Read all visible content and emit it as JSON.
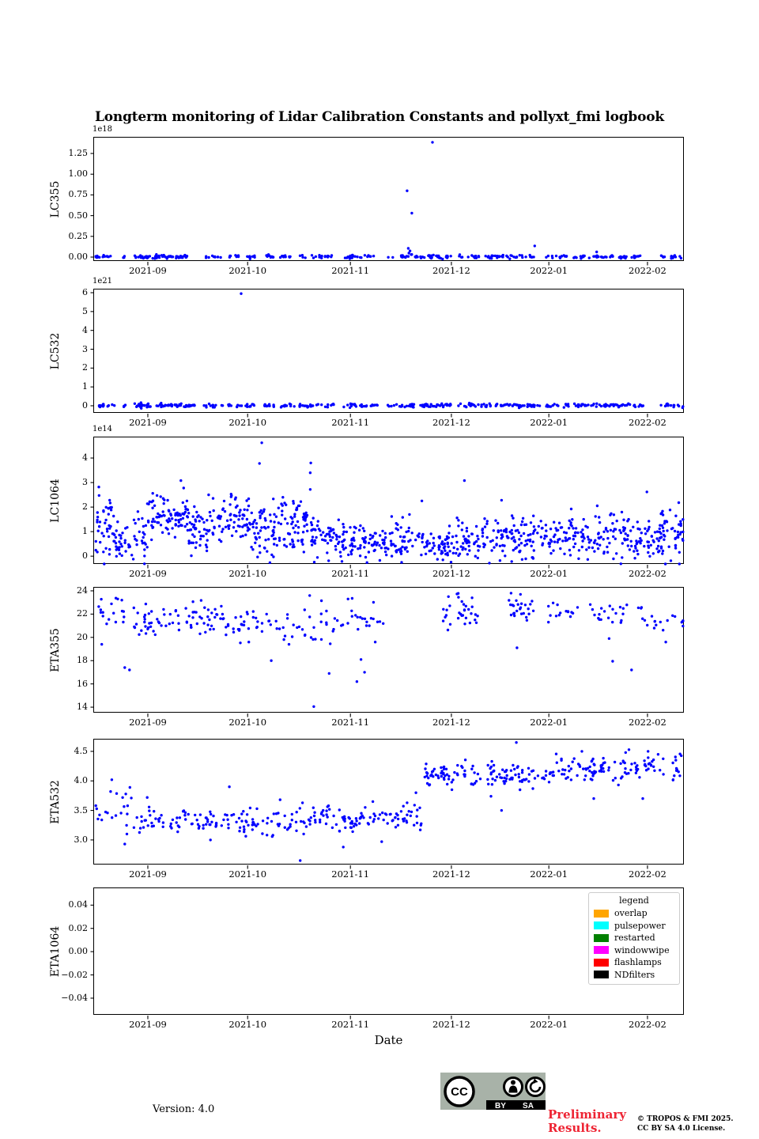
{
  "title": "Longterm monitoring of Lidar Calibration Constants and pollyxt_fmi logbook",
  "figure": {
    "background": "#ffffff",
    "point_color": "#0000ff",
    "axis_color": "#000000"
  },
  "x_axis": {
    "label": "Date",
    "ticks": [
      {
        "f": 0.091,
        "label": "2021-09"
      },
      {
        "f": 0.26,
        "label": "2021-10"
      },
      {
        "f": 0.434,
        "label": "2021-11"
      },
      {
        "f": 0.605,
        "label": "2021-12"
      },
      {
        "f": 0.77,
        "label": "2022-01"
      },
      {
        "f": 0.937,
        "label": "2022-02"
      }
    ]
  },
  "chart_data": [
    {
      "type": "scatter",
      "ylabel": "LC355",
      "offset_text": "1e18",
      "ylim": [
        -0.057,
        1.441
      ],
      "yticks": [
        {
          "v": 0.0,
          "label": "0.00"
        },
        {
          "v": 0.25,
          "label": "0.25"
        },
        {
          "v": 0.5,
          "label": "0.50"
        },
        {
          "v": 0.75,
          "label": "0.75"
        },
        {
          "v": 1.0,
          "label": "1.00"
        },
        {
          "v": 1.25,
          "label": "1.25"
        }
      ],
      "clusters": [
        {
          "x0": 0.0,
          "x1": 0.035,
          "n": 14,
          "y": 0.004,
          "sd": 0.01
        },
        {
          "x0": 0.048,
          "x1": 0.052,
          "n": 3,
          "y": 0.004,
          "sd": 0.008
        },
        {
          "x0": 0.068,
          "x1": 0.165,
          "n": 60,
          "y": 0.004,
          "sd": 0.01
        },
        {
          "x0": 0.188,
          "x1": 0.215,
          "n": 10,
          "y": 0.004,
          "sd": 0.01
        },
        {
          "x0": 0.228,
          "x1": 0.248,
          "n": 8,
          "y": 0.004,
          "sd": 0.01
        },
        {
          "x0": 0.258,
          "x1": 0.272,
          "n": 8,
          "y": 0.004,
          "sd": 0.01
        },
        {
          "x0": 0.285,
          "x1": 0.305,
          "n": 10,
          "y": 0.004,
          "sd": 0.01
        },
        {
          "x0": 0.315,
          "x1": 0.338,
          "n": 10,
          "y": 0.004,
          "sd": 0.01
        },
        {
          "x0": 0.348,
          "x1": 0.405,
          "n": 20,
          "y": 0.004,
          "sd": 0.01
        },
        {
          "x0": 0.425,
          "x1": 0.478,
          "n": 20,
          "y": 0.004,
          "sd": 0.01
        },
        {
          "x0": 0.498,
          "x1": 0.548,
          "n": 16,
          "y": 0.004,
          "sd": 0.01
        },
        {
          "x0": 0.552,
          "x1": 0.605,
          "n": 26,
          "y": 0.004,
          "sd": 0.012
        },
        {
          "x0": 0.618,
          "x1": 0.655,
          "n": 14,
          "y": 0.004,
          "sd": 0.01
        },
        {
          "x0": 0.658,
          "x1": 0.752,
          "n": 38,
          "y": 0.004,
          "sd": 0.01
        },
        {
          "x0": 0.765,
          "x1": 0.802,
          "n": 14,
          "y": 0.004,
          "sd": 0.01
        },
        {
          "x0": 0.812,
          "x1": 0.902,
          "n": 40,
          "y": 0.004,
          "sd": 0.01
        },
        {
          "x0": 0.908,
          "x1": 0.928,
          "n": 8,
          "y": 0.004,
          "sd": 0.01
        },
        {
          "x0": 0.958,
          "x1": 1.0,
          "n": 14,
          "y": 0.004,
          "sd": 0.01
        }
      ],
      "outliers": [
        [
          0.53,
          0.8
        ],
        [
          0.538,
          0.53
        ],
        [
          0.532,
          0.105
        ],
        [
          0.535,
          0.075
        ],
        [
          0.533,
          0.048
        ],
        [
          0.537,
          0.03
        ],
        [
          0.573,
          1.385
        ],
        [
          0.746,
          0.135
        ],
        [
          0.851,
          0.062
        ]
      ]
    },
    {
      "type": "scatter",
      "ylabel": "LC532",
      "offset_text": "1e21",
      "ylim": [
        -0.42,
        6.17
      ],
      "yticks": [
        {
          "v": 0,
          "label": "0"
        },
        {
          "v": 1,
          "label": "1"
        },
        {
          "v": 2,
          "label": "2"
        },
        {
          "v": 3,
          "label": "3"
        },
        {
          "v": 4,
          "label": "4"
        },
        {
          "v": 5,
          "label": "5"
        },
        {
          "v": 6,
          "label": "6"
        }
      ],
      "clusters": [
        {
          "x0": 0.0,
          "x1": 0.038,
          "n": 16,
          "y": 0.015,
          "sd": 0.05
        },
        {
          "x0": 0.05,
          "x1": 0.055,
          "n": 4,
          "y": 0.015,
          "sd": 0.04
        },
        {
          "x0": 0.066,
          "x1": 0.17,
          "n": 70,
          "y": 0.015,
          "sd": 0.05
        },
        {
          "x0": 0.186,
          "x1": 0.218,
          "n": 12,
          "y": 0.015,
          "sd": 0.05
        },
        {
          "x0": 0.226,
          "x1": 0.25,
          "n": 10,
          "y": 0.015,
          "sd": 0.05
        },
        {
          "x0": 0.256,
          "x1": 0.275,
          "n": 10,
          "y": 0.015,
          "sd": 0.05
        },
        {
          "x0": 0.284,
          "x1": 0.308,
          "n": 12,
          "y": 0.015,
          "sd": 0.05
        },
        {
          "x0": 0.314,
          "x1": 0.34,
          "n": 12,
          "y": 0.015,
          "sd": 0.05
        },
        {
          "x0": 0.346,
          "x1": 0.408,
          "n": 24,
          "y": 0.015,
          "sd": 0.05
        },
        {
          "x0": 0.422,
          "x1": 0.48,
          "n": 24,
          "y": 0.015,
          "sd": 0.05
        },
        {
          "x0": 0.496,
          "x1": 0.55,
          "n": 20,
          "y": 0.015,
          "sd": 0.05
        },
        {
          "x0": 0.552,
          "x1": 0.608,
          "n": 30,
          "y": 0.015,
          "sd": 0.05
        },
        {
          "x0": 0.615,
          "x1": 0.658,
          "n": 16,
          "y": 0.015,
          "sd": 0.05
        },
        {
          "x0": 0.658,
          "x1": 0.755,
          "n": 46,
          "y": 0.015,
          "sd": 0.05
        },
        {
          "x0": 0.762,
          "x1": 0.805,
          "n": 16,
          "y": 0.015,
          "sd": 0.05
        },
        {
          "x0": 0.81,
          "x1": 0.905,
          "n": 46,
          "y": 0.015,
          "sd": 0.05
        },
        {
          "x0": 0.906,
          "x1": 0.93,
          "n": 10,
          "y": 0.015,
          "sd": 0.05
        },
        {
          "x0": 0.955,
          "x1": 1.0,
          "n": 16,
          "y": 0.015,
          "sd": 0.05
        }
      ],
      "outliers": [
        [
          0.249,
          5.95
        ]
      ]
    },
    {
      "type": "scatter",
      "ylabel": "LC1064",
      "offset_text": "1e14",
      "ylim": [
        -0.35,
        4.84
      ],
      "yticks": [
        {
          "v": 0,
          "label": "0"
        },
        {
          "v": 1,
          "label": "1"
        },
        {
          "v": 2,
          "label": "2"
        },
        {
          "v": 3,
          "label": "3"
        },
        {
          "v": 4,
          "label": "4"
        }
      ],
      "clusters": [
        {
          "x0": 0.0,
          "x1": 0.03,
          "n": 38,
          "y": 1.15,
          "sd": 0.65
        },
        {
          "x0": 0.03,
          "x1": 0.09,
          "n": 60,
          "y": 0.75,
          "sd": 0.4
        },
        {
          "x0": 0.09,
          "x1": 0.16,
          "n": 85,
          "y": 1.7,
          "sd": 0.4
        },
        {
          "x0": 0.16,
          "x1": 0.2,
          "n": 50,
          "y": 1.1,
          "sd": 0.45
        },
        {
          "x0": 0.2,
          "x1": 0.262,
          "n": 70,
          "y": 1.5,
          "sd": 0.5
        },
        {
          "x0": 0.262,
          "x1": 0.31,
          "n": 60,
          "y": 1.05,
          "sd": 0.55
        },
        {
          "x0": 0.31,
          "x1": 0.368,
          "n": 70,
          "y": 1.25,
          "sd": 0.5
        },
        {
          "x0": 0.368,
          "x1": 0.43,
          "n": 70,
          "y": 0.8,
          "sd": 0.42
        },
        {
          "x0": 0.43,
          "x1": 0.5,
          "n": 70,
          "y": 0.55,
          "sd": 0.33
        },
        {
          "x0": 0.5,
          "x1": 0.56,
          "n": 55,
          "y": 0.75,
          "sd": 0.4
        },
        {
          "x0": 0.56,
          "x1": 0.6,
          "n": 45,
          "y": 0.42,
          "sd": 0.28
        },
        {
          "x0": 0.6,
          "x1": 0.66,
          "n": 60,
          "y": 0.6,
          "sd": 0.38
        },
        {
          "x0": 0.66,
          "x1": 0.72,
          "n": 60,
          "y": 0.8,
          "sd": 0.42
        },
        {
          "x0": 0.72,
          "x1": 0.78,
          "n": 60,
          "y": 0.8,
          "sd": 0.42
        },
        {
          "x0": 0.78,
          "x1": 0.845,
          "n": 60,
          "y": 0.9,
          "sd": 0.42
        },
        {
          "x0": 0.845,
          "x1": 0.905,
          "n": 60,
          "y": 0.8,
          "sd": 0.45
        },
        {
          "x0": 0.905,
          "x1": 0.96,
          "n": 55,
          "y": 0.7,
          "sd": 0.42
        },
        {
          "x0": 0.96,
          "x1": 1.0,
          "n": 50,
          "y": 0.85,
          "sd": 0.5
        }
      ],
      "outliers": [
        [
          0.284,
          4.62
        ],
        [
          0.28,
          3.78
        ],
        [
          0.367,
          3.8
        ],
        [
          0.366,
          3.4
        ],
        [
          0.366,
          2.72
        ],
        [
          0.008,
          2.82
        ],
        [
          0.147,
          3.08
        ],
        [
          0.194,
          2.5
        ],
        [
          0.627,
          3.08
        ],
        [
          0.555,
          2.25
        ],
        [
          0.69,
          2.28
        ],
        [
          0.936,
          2.62
        ],
        [
          0.99,
          2.18
        ],
        [
          0.852,
          2.05
        ],
        [
          0.117,
          2.35
        ],
        [
          0.232,
          2.42
        ]
      ]
    },
    {
      "type": "scatter",
      "ylabel": "ETA355",
      "offset_text": null,
      "ylim": [
        13.46,
        24.27
      ],
      "yticks": [
        {
          "v": 14,
          "label": "14"
        },
        {
          "v": 16,
          "label": "16"
        },
        {
          "v": 18,
          "label": "18"
        },
        {
          "v": 20,
          "label": "20"
        },
        {
          "v": 22,
          "label": "22"
        },
        {
          "v": 24,
          "label": "24"
        }
      ],
      "clusters": [
        {
          "x0": 0.0,
          "x1": 0.03,
          "n": 9,
          "y": 21.9,
          "sd": 0.8
        },
        {
          "x0": 0.03,
          "x1": 0.07,
          "n": 10,
          "y": 22.1,
          "sd": 0.6
        },
        {
          "x0": 0.07,
          "x1": 0.22,
          "n": 72,
          "y": 21.5,
          "sd": 0.65
        },
        {
          "x0": 0.22,
          "x1": 0.31,
          "n": 34,
          "y": 21.1,
          "sd": 0.75
        },
        {
          "x0": 0.31,
          "x1": 0.4,
          "n": 26,
          "y": 21.0,
          "sd": 0.8
        },
        {
          "x0": 0.4,
          "x1": 0.49,
          "n": 24,
          "y": 21.5,
          "sd": 0.55
        },
        {
          "x0": 0.578,
          "x1": 0.65,
          "n": 30,
          "y": 22.3,
          "sd": 0.7
        },
        {
          "x0": 0.7,
          "x1": 0.748,
          "n": 24,
          "y": 22.5,
          "sd": 0.6
        },
        {
          "x0": 0.764,
          "x1": 0.822,
          "n": 15,
          "y": 22.1,
          "sd": 0.4
        },
        {
          "x0": 0.838,
          "x1": 0.93,
          "n": 24,
          "y": 22.1,
          "sd": 0.65
        },
        {
          "x0": 0.93,
          "x1": 1.0,
          "n": 16,
          "y": 21.3,
          "sd": 0.45
        }
      ],
      "outliers": [
        [
          0.013,
          19.4
        ],
        [
          0.04,
          23.3
        ],
        [
          0.047,
          23.2
        ],
        [
          0.052,
          17.4
        ],
        [
          0.06,
          17.2
        ],
        [
          0.262,
          19.6
        ],
        [
          0.3,
          18.0
        ],
        [
          0.33,
          19.4
        ],
        [
          0.365,
          23.6
        ],
        [
          0.385,
          23.15
        ],
        [
          0.372,
          14.05
        ],
        [
          0.398,
          16.9
        ],
        [
          0.43,
          23.3
        ],
        [
          0.437,
          23.35
        ],
        [
          0.445,
          16.2
        ],
        [
          0.452,
          18.1
        ],
        [
          0.458,
          17.0
        ],
        [
          0.476,
          19.6
        ],
        [
          0.6,
          23.5
        ],
        [
          0.617,
          23.45
        ],
        [
          0.64,
          23.4
        ],
        [
          0.706,
          23.8
        ],
        [
          0.722,
          23.7
        ],
        [
          0.716,
          19.1
        ],
        [
          0.878,
          17.95
        ],
        [
          0.872,
          19.9
        ],
        [
          0.91,
          17.2
        ],
        [
          0.968,
          19.6
        ],
        [
          0.995,
          21.3
        ]
      ]
    },
    {
      "type": "scatter",
      "ylabel": "ETA532",
      "offset_text": null,
      "ylim": [
        2.57,
        4.7
      ],
      "yticks": [
        {
          "v": 3.0,
          "label": "3.0"
        },
        {
          "v": 3.5,
          "label": "3.5"
        },
        {
          "v": 4.0,
          "label": "4.0"
        },
        {
          "v": 4.5,
          "label": "4.5"
        }
      ],
      "clusters": [
        {
          "x0": 0.0,
          "x1": 0.025,
          "n": 7,
          "y": 3.4,
          "sd": 0.08
        },
        {
          "x0": 0.025,
          "x1": 0.065,
          "n": 12,
          "y": 3.45,
          "sd": 0.25
        },
        {
          "x0": 0.065,
          "x1": 0.23,
          "n": 72,
          "y": 3.32,
          "sd": 0.1
        },
        {
          "x0": 0.23,
          "x1": 0.33,
          "n": 46,
          "y": 3.28,
          "sd": 0.11
        },
        {
          "x0": 0.33,
          "x1": 0.4,
          "n": 36,
          "y": 3.33,
          "sd": 0.12
        },
        {
          "x0": 0.4,
          "x1": 0.47,
          "n": 36,
          "y": 3.32,
          "sd": 0.09
        },
        {
          "x0": 0.47,
          "x1": 0.53,
          "n": 30,
          "y": 3.38,
          "sd": 0.1
        },
        {
          "x0": 0.53,
          "x1": 0.557,
          "n": 12,
          "y": 3.4,
          "sd": 0.15
        },
        {
          "x0": 0.557,
          "x1": 0.6,
          "n": 34,
          "y": 4.1,
          "sd": 0.1
        },
        {
          "x0": 0.6,
          "x1": 0.66,
          "n": 26,
          "y": 4.08,
          "sd": 0.12
        },
        {
          "x0": 0.66,
          "x1": 0.72,
          "n": 40,
          "y": 4.12,
          "sd": 0.1
        },
        {
          "x0": 0.72,
          "x1": 0.78,
          "n": 28,
          "y": 4.05,
          "sd": 0.1
        },
        {
          "x0": 0.78,
          "x1": 0.845,
          "n": 36,
          "y": 4.18,
          "sd": 0.12
        },
        {
          "x0": 0.845,
          "x1": 0.93,
          "n": 46,
          "y": 4.2,
          "sd": 0.11
        },
        {
          "x0": 0.93,
          "x1": 1.0,
          "n": 30,
          "y": 4.22,
          "sd": 0.12
        }
      ],
      "outliers": [
        [
          0.03,
          4.02
        ],
        [
          0.028,
          3.82
        ],
        [
          0.063,
          3.71
        ],
        [
          0.052,
          2.93
        ],
        [
          0.09,
          3.72
        ],
        [
          0.229,
          3.9
        ],
        [
          0.197,
          3.0
        ],
        [
          0.349,
          2.65
        ],
        [
          0.422,
          2.88
        ],
        [
          0.487,
          2.97
        ],
        [
          0.459,
          3.55
        ],
        [
          0.472,
          3.65
        ],
        [
          0.315,
          3.68
        ],
        [
          0.53,
          3.63
        ],
        [
          0.545,
          3.8
        ],
        [
          0.715,
          4.65
        ],
        [
          0.743,
          3.87
        ],
        [
          0.846,
          3.7
        ],
        [
          0.929,
          3.7
        ],
        [
          0.826,
          4.5
        ],
        [
          0.9,
          4.48
        ],
        [
          0.938,
          4.5
        ],
        [
          0.955,
          4.45
        ],
        [
          0.985,
          4.35
        ],
        [
          0.69,
          3.5
        ],
        [
          0.672,
          3.74
        ]
      ]
    },
    {
      "type": "scatter",
      "ylabel": "ETA1064",
      "offset_text": null,
      "xlabel": "Date",
      "ylim": [
        -0.055,
        0.0545
      ],
      "yticks": [
        {
          "v": -0.04,
          "label": "−0.04"
        },
        {
          "v": -0.02,
          "label": "−0.02"
        },
        {
          "v": 0.0,
          "label": "0.00"
        },
        {
          "v": 0.02,
          "label": "0.02"
        },
        {
          "v": 0.04,
          "label": "0.04"
        }
      ],
      "clusters": [],
      "outliers": [],
      "legend": {
        "title": "legend",
        "items": [
          {
            "label": "overlap",
            "color": "#FFA500"
          },
          {
            "label": "pulsepower",
            "color": "#00FFFF"
          },
          {
            "label": "restarted",
            "color": "#008000"
          },
          {
            "label": "windowwipe",
            "color": "#FF00FF"
          },
          {
            "label": "flashlamps",
            "color": "#FF0000"
          },
          {
            "label": "NDfilters",
            "color": "#000000"
          }
        ]
      }
    }
  ],
  "footer": {
    "version": "Version: 4.0",
    "preliminary_line1": "Preliminary",
    "preliminary_line2": "Results.",
    "copyright_line1": "© TROPOS & FMI 2025.",
    "copyright_line2": "CC BY SA 4.0 License.",
    "cc_badge": {
      "cc_text": "CC",
      "by_label": "BY",
      "sa_label": "SA"
    }
  }
}
